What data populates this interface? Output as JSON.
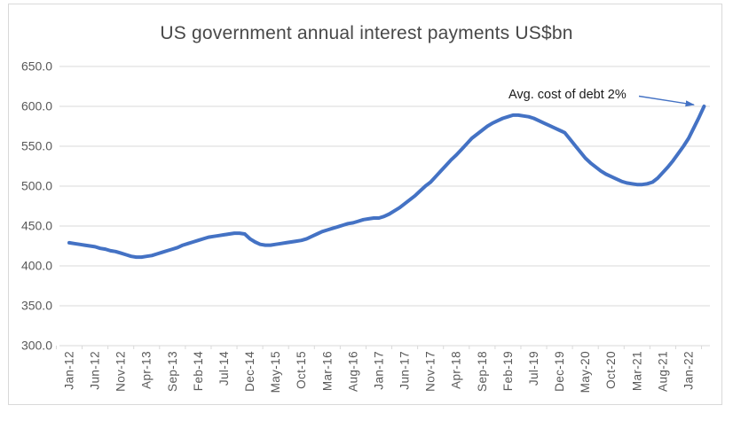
{
  "chart_data": {
    "type": "line",
    "title": "US government annual interest payments US$bn",
    "x_unit": "monthly, first point Jan-12, last point 3 months after Jan-22",
    "x_tick_every_months": 5,
    "x_tick_labels": [
      "Jan-12",
      "Jun-12",
      "Nov-12",
      "Apr-13",
      "Sep-13",
      "Feb-14",
      "Jul-14",
      "Dec-14",
      "May-15",
      "Oct-15",
      "Mar-16",
      "Aug-16",
      "Jan-17",
      "Jun-17",
      "Nov-17",
      "Apr-18",
      "Sep-18",
      "Feb-19",
      "Jul-19",
      "Dec-19",
      "May-20",
      "Oct-20",
      "Mar-21",
      "Aug-21",
      "Jan-22"
    ],
    "y_tick_labels": [
      "650.0",
      "600.0",
      "550.0",
      "500.0",
      "450.0",
      "400.0",
      "350.0",
      "300.0"
    ],
    "ylim": [
      300,
      650
    ],
    "grid": "horizontal",
    "legend": "none",
    "gridline_color": "#d9d9d9",
    "axis_text_color": "#595959",
    "title_color": "#484848",
    "series": [
      {
        "name": "US government annual interest payments (US$bn)",
        "color": "#4472c4",
        "values": [
          429,
          428,
          427,
          426,
          425,
          424,
          422,
          421,
          419,
          418,
          416,
          414,
          412,
          411,
          411,
          412,
          413,
          415,
          417,
          419,
          421,
          423,
          426,
          428,
          430,
          432,
          434,
          436,
          437,
          438,
          439,
          440,
          441,
          441,
          440,
          434,
          430,
          427,
          426,
          426,
          427,
          428,
          429,
          430,
          431,
          432,
          434,
          437,
          440,
          443,
          445,
          447,
          449,
          451,
          453,
          454,
          456,
          458,
          459,
          460,
          460,
          462,
          465,
          469,
          473,
          478,
          483,
          488,
          494,
          500,
          505,
          512,
          519,
          526,
          533,
          539,
          546,
          553,
          560,
          565,
          570,
          575,
          579,
          582,
          585,
          587,
          589,
          589,
          588,
          587,
          585,
          582,
          579,
          576,
          573,
          570,
          567,
          559,
          551,
          543,
          535,
          529,
          524,
          519,
          515,
          512,
          509,
          506,
          504,
          503,
          502,
          502,
          503,
          505,
          510,
          517,
          524,
          532,
          541,
          550,
          560,
          573,
          586,
          600
        ]
      }
    ],
    "annotation": {
      "text": "Avg. cost of debt 2%",
      "arrow_color": "#4472c4",
      "points_to": "last data point (~600)"
    }
  }
}
